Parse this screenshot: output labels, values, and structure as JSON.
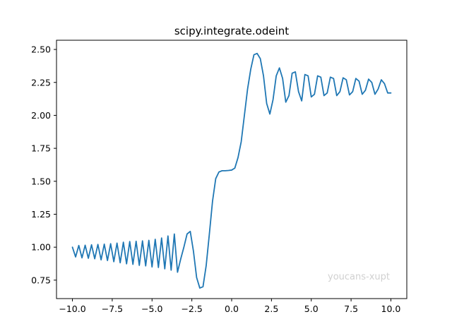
{
  "chart_data": {
    "type": "line",
    "title": "scipy.integrate.odeint",
    "xlabel": "",
    "ylabel": "",
    "xlim": [
      -11.0,
      11.0
    ],
    "ylim": [
      0.61,
      2.57
    ],
    "xticks": [
      -10.0,
      -7.5,
      -5.0,
      -2.5,
      0.0,
      2.5,
      5.0,
      7.5,
      10.0
    ],
    "xtick_labels": [
      "−10.0",
      "−7.5",
      "−5.0",
      "−2.5",
      "0.0",
      "2.5",
      "5.0",
      "7.5",
      "10.0"
    ],
    "yticks": [
      0.75,
      1.0,
      1.25,
      1.5,
      1.75,
      2.0,
      2.25,
      2.5
    ],
    "ytick_labels": [
      "0.75",
      "1.00",
      "1.25",
      "1.50",
      "1.75",
      "2.00",
      "2.25",
      "2.50"
    ],
    "grid": false,
    "series": [
      {
        "color": "#1f77b4",
        "x": [
          -10.0,
          -9.8,
          -9.6,
          -9.4,
          -9.2,
          -9.0,
          -8.8,
          -8.6,
          -8.4,
          -8.2,
          -8.0,
          -7.8,
          -7.6,
          -7.4,
          -7.2,
          -7.0,
          -6.8,
          -6.6,
          -6.4,
          -6.2,
          -6.0,
          -5.8,
          -5.6,
          -5.4,
          -5.2,
          -5.0,
          -4.8,
          -4.6,
          -4.4,
          -4.2,
          -4.0,
          -3.8,
          -3.6,
          -3.4,
          -3.2,
          -3.0,
          -2.8,
          -2.6,
          -2.4,
          -2.2,
          -2.0,
          -1.8,
          -1.6,
          -1.4,
          -1.2,
          -1.0,
          -0.8,
          -0.6,
          -0.4,
          -0.2,
          0.0,
          0.2,
          0.4,
          0.6,
          0.8,
          1.0,
          1.2,
          1.4,
          1.6,
          1.8,
          2.0,
          2.2,
          2.4,
          2.6,
          2.8,
          3.0,
          3.2,
          3.4,
          3.6,
          3.8,
          4.0,
          4.2,
          4.4,
          4.6,
          4.8,
          5.0,
          5.2,
          5.4,
          5.6,
          5.8,
          6.0,
          6.2,
          6.4,
          6.6,
          6.8,
          7.0,
          7.2,
          7.4,
          7.6,
          7.8,
          8.0,
          8.2,
          8.4,
          8.6,
          8.8,
          9.0,
          9.2,
          9.4,
          9.6,
          9.8,
          10.0
        ],
        "y": [
          1.0,
          0.926,
          1.013,
          0.919,
          1.015,
          0.916,
          1.018,
          0.912,
          1.021,
          0.904,
          1.023,
          0.899,
          1.026,
          0.89,
          1.031,
          0.882,
          1.038,
          0.874,
          1.043,
          0.87,
          1.045,
          0.862,
          1.048,
          0.858,
          1.052,
          0.85,
          1.06,
          0.846,
          1.07,
          0.836,
          1.085,
          0.826,
          1.1,
          0.81,
          0.91,
          1.0,
          1.1,
          1.12,
          0.97,
          0.77,
          0.69,
          0.7,
          0.86,
          1.1,
          1.35,
          1.52,
          1.57,
          1.58,
          1.58,
          1.582,
          1.585,
          1.6,
          1.68,
          1.8,
          2.0,
          2.2,
          2.35,
          2.46,
          2.47,
          2.43,
          2.3,
          2.09,
          2.01,
          2.12,
          2.3,
          2.36,
          2.28,
          2.1,
          2.15,
          2.32,
          2.33,
          2.18,
          2.11,
          2.31,
          2.3,
          2.14,
          2.16,
          2.3,
          2.29,
          2.15,
          2.17,
          2.29,
          2.28,
          2.15,
          2.18,
          2.285,
          2.27,
          2.155,
          2.18,
          2.28,
          2.26,
          2.16,
          2.19,
          2.275,
          2.25,
          2.16,
          2.2,
          2.27,
          2.24,
          2.17,
          2.17
        ]
      }
    ],
    "watermark": "youcans-xupt"
  }
}
